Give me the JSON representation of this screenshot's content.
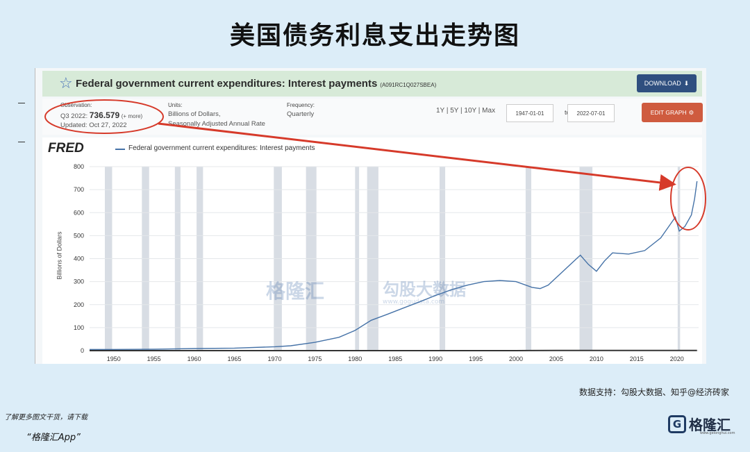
{
  "slide": {
    "title": "美国债务利息支出走势图",
    "source": "数据支持：勾股大数据、知乎@经济砖家",
    "promo_line1": "了解更多图文干货，请下载",
    "promo_line2": "“格隆汇App”",
    "brand_name": "格隆汇",
    "brand_url": "www.gelonghui.com"
  },
  "fred": {
    "series_title": "Federal government current expenditures: Interest payments",
    "series_code": "(A091RC1Q027SBEA)",
    "download_label": "DOWNLOAD",
    "observation_label": "Observation:",
    "observation_period": "Q3 2022:",
    "observation_value": "736.579",
    "observation_more": "(+ more)",
    "updated": "Updated: Oct 27, 2022",
    "units_label": "Units:",
    "units_line1": "Billions of Dollars,",
    "units_line2": "Seasonally Adjusted Annual Rate",
    "frequency_label": "Frequency:",
    "frequency_value": "Quarterly",
    "periods": "1Y | 5Y | 10Y | Max",
    "date_from": "1947-01-01",
    "to_label": "to",
    "date_to": "2022-07-01",
    "edit_label": "EDIT GRAPH",
    "logo": "FRED",
    "watermark1": "格隆汇",
    "watermark2": "勾股大数据",
    "watermark2_url": "www.gogudata.com"
  },
  "colors": {
    "line": "#4572a7",
    "recession": "#d8dde4",
    "highlight": "#d63a2a",
    "download": "#2f4f7f",
    "edit": "#cf5b3f"
  },
  "chart_data": {
    "type": "line",
    "title": "",
    "xlabel": "",
    "ylabel": "Billions of Dollars",
    "xlim": [
      1947,
      2022.7
    ],
    "ylim": [
      0,
      800
    ],
    "yticks": [
      0,
      100,
      200,
      300,
      400,
      500,
      600,
      700,
      800
    ],
    "xticks": [
      1950,
      1955,
      1960,
      1965,
      1970,
      1975,
      1980,
      1985,
      1990,
      1995,
      2000,
      2005,
      2010,
      2015,
      2020
    ],
    "grid": true,
    "legend": "top-left",
    "recessions": [
      [
        1948.9,
        1949.8
      ],
      [
        1953.5,
        1954.4
      ],
      [
        1957.6,
        1958.3
      ],
      [
        1960.3,
        1961.1
      ],
      [
        1969.9,
        1970.9
      ],
      [
        1973.9,
        1975.2
      ],
      [
        1980.0,
        1980.5
      ],
      [
        1981.5,
        1982.9
      ],
      [
        1990.5,
        1991.2
      ],
      [
        2001.2,
        2001.9
      ],
      [
        2007.9,
        2009.5
      ],
      [
        2020.1,
        2020.4
      ]
    ],
    "series": [
      {
        "name": "Federal government current expenditures: Interest payments",
        "x": [
          1947,
          1950,
          1955,
          1960,
          1965,
          1970,
          1972,
          1975,
          1978,
          1980,
          1982,
          1984,
          1986,
          1988,
          1990,
          1992,
          1994,
          1996,
          1998,
          2000,
          2002,
          2003,
          2004,
          2006,
          2008,
          2009,
          2010,
          2011,
          2012,
          2014,
          2016,
          2018,
          2019,
          2019.8,
          2020.3,
          2021,
          2021.8,
          2022.2,
          2022.5
        ],
        "values": [
          5,
          5,
          6,
          9,
          11,
          17,
          21,
          36,
          58,
          88,
          132,
          158,
          185,
          212,
          240,
          265,
          285,
          300,
          305,
          300,
          275,
          270,
          285,
          350,
          415,
          375,
          345,
          390,
          425,
          420,
          435,
          490,
          540,
          580,
          520,
          540,
          590,
          660,
          736.6
        ]
      },
      {
        "name": "",
        "x": [
          1947,
          2000,
          2005,
          2010,
          2015,
          2020,
          2022.5
        ],
        "values": [
          0,
          0,
          1,
          1,
          1,
          1,
          1
        ]
      }
    ],
    "annotations": [
      {
        "type": "highlight-ellipse",
        "label": "Observation Q3 2022: 736.579"
      }
    ]
  }
}
